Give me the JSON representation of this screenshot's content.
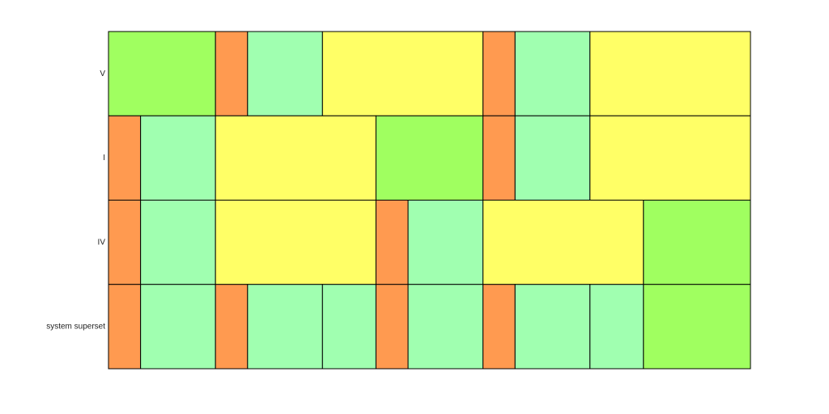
{
  "row_labels": [
    "V",
    "I",
    "IV",
    "system superset"
  ]
}
